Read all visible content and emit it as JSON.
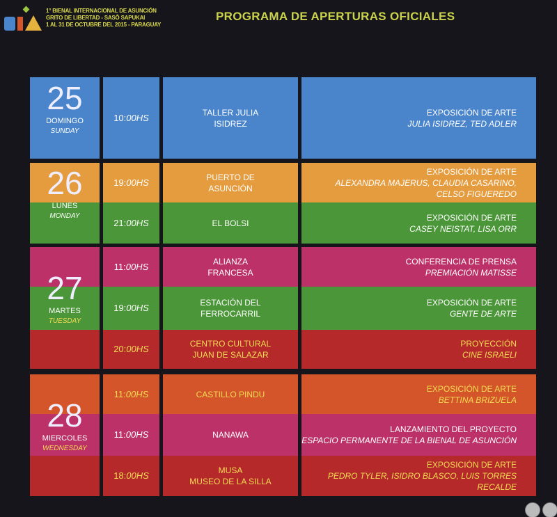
{
  "header": {
    "logo_text": "BIA",
    "lines": [
      "1° BIENAL INTERNACIONAL DE ASUNCIÓN",
      "GRITO DE LIBERTAD - SASÔ SAPUKAI",
      "1 AL 31 DE OCTUBRE DEL 2015 - PARAGUAY"
    ],
    "title": "PROGRAMA DE APERTURAS OFICIALES"
  },
  "colors": {
    "blue": "#4a85cc",
    "orange": "#e59c3e",
    "green": "#4a9638",
    "pink": "#bc3168",
    "red": "#b5292a",
    "darkorange": "#d4552a",
    "yellow": "#f3dc52",
    "white": "#ffffff"
  },
  "days": [
    {
      "num": "25",
      "es": "DOMINGO",
      "en": "SUNDAY",
      "en_color": "#ffffff",
      "rows": [
        {
          "bg": "blue",
          "fg": "white",
          "time_h": "10:",
          "time_m": "00HS",
          "venue": [
            "TALLER JULIA",
            "ISIDREZ"
          ],
          "event": "EXPOSICIÓN DE ARTE",
          "detail": [
            "JULIA ISIDREZ, TED ADLER"
          ]
        }
      ]
    },
    {
      "num": "26",
      "es": "LUNES",
      "en": "MONDAY",
      "en_color": "#ffffff",
      "rows": [
        {
          "bg": "orange",
          "fg": "white",
          "time_h": "19:",
          "time_m": "00HS",
          "venue": [
            "PUERTO DE",
            "ASUNCIÓN"
          ],
          "event": "EXPOSICIÓN DE ARTE",
          "detail": [
            "ALEXANDRA MAJERUS, CLAUDIA CASARINO,",
            "CELSO FIGUEREDO"
          ]
        },
        {
          "bg": "green",
          "fg": "white",
          "time_h": "21:",
          "time_m": "00HS",
          "venue": [
            "EL BOLSI"
          ],
          "event": "EXPOSICIÓN DE ARTE",
          "detail": [
            "CASEY NEISTAT, LISA ORR"
          ]
        }
      ]
    },
    {
      "num": "27",
      "es": "MARTES",
      "en": "TUESDAY",
      "en_color": "#f3dc52",
      "rows": [
        {
          "bg": "pink",
          "fg": "white",
          "time_h": "11:",
          "time_m": "00HS",
          "venue": [
            "ALIANZA",
            "FRANCESA"
          ],
          "event": "CONFERENCIA DE PRENSA",
          "detail": [
            "PREMIACIÓN MATISSE"
          ]
        },
        {
          "bg": "green",
          "fg": "white",
          "time_h": "19:",
          "time_m": "00HS",
          "venue": [
            "ESTACIÓN DEL",
            "FERROCARRIL"
          ],
          "event": "EXPOSICIÓN DE ARTE",
          "detail": [
            "GENTE DE ARTE"
          ]
        },
        {
          "bg": "red",
          "fg": "yellow",
          "time_h": "20:",
          "time_m": "00HS",
          "venue": [
            "CENTRO CULTURAL",
            "JUAN DE SALAZAR"
          ],
          "event": "PROYECCIÓN",
          "detail": [
            "CINE ISRAELI"
          ]
        }
      ]
    },
    {
      "num": "28",
      "es": "MIERCOLES",
      "en": "WEDNESDAY",
      "en_color": "#f3dc52",
      "rows": [
        {
          "bg": "darkorange",
          "fg": "yellow",
          "time_h": "11:",
          "time_m": "00HS",
          "venue": [
            "CASTILLO PINDU"
          ],
          "event": "EXPOSICIÓN DE ARTE",
          "detail": [
            "BETTINA BRIZUELA"
          ]
        },
        {
          "bg": "pink",
          "fg": "white",
          "time_h": "11:",
          "time_m": "00HS",
          "venue": [
            "NANAWA"
          ],
          "event": "LANZAMIENTO DEL PROYECTO",
          "detail": [
            "ESPACIO PERMANENTE DE LA BIENAL DE ASUNCIÓN"
          ]
        },
        {
          "bg": "red",
          "fg": "yellow",
          "time_h": "18:",
          "time_m": "00HS",
          "venue": [
            "MUSA",
            "MUSEO DE LA SILLA"
          ],
          "event": "EXPOSICIÓN DE ARTE",
          "detail": [
            "PEDRO TYLER, ISIDRO BLASCO, LUIS TORRES RECALDE"
          ]
        }
      ]
    }
  ],
  "controls": [
    {
      "icon": "more-icon"
    },
    {
      "icon": "flag-icon"
    }
  ]
}
